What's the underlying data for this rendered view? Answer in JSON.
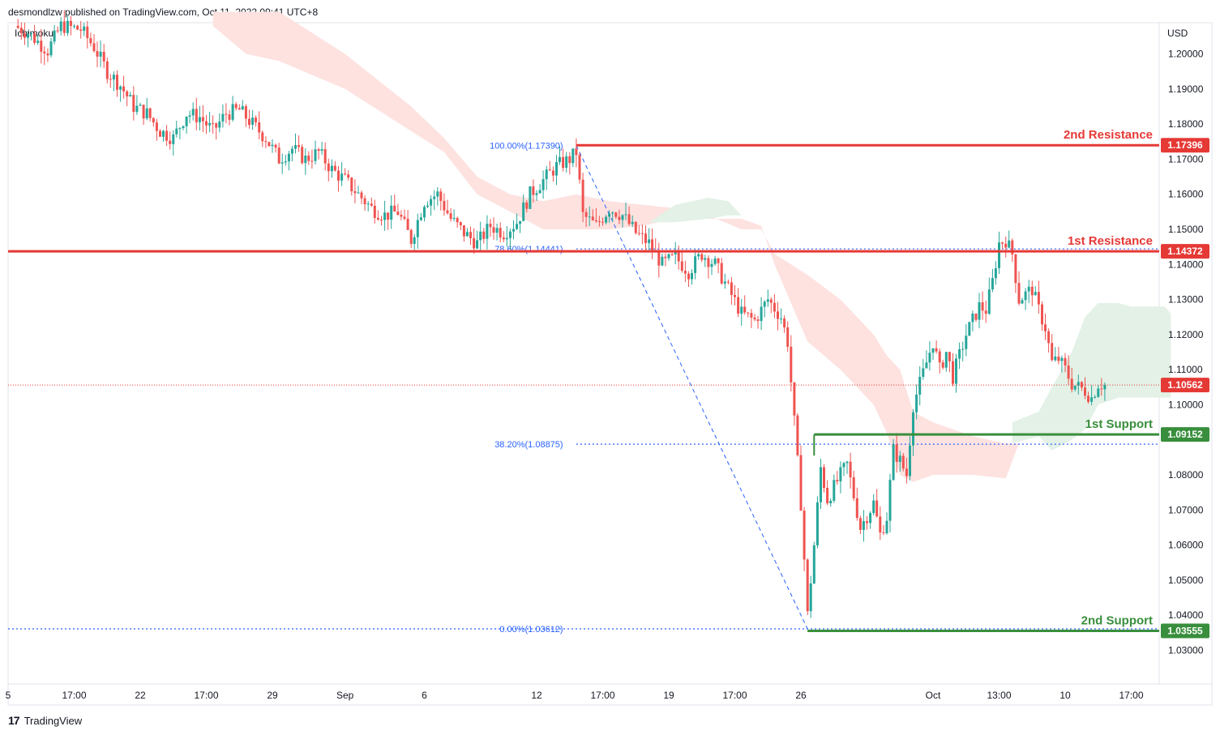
{
  "header": {
    "published": "desmondlzw published on TradingView.com, Oct 11, 2022 09:41 UTC+8",
    "indicator": "Ichimoku"
  },
  "footer": {
    "brand": "TradingView",
    "logo_glyph": "17"
  },
  "colors": {
    "bull": "#26a69a",
    "bear": "#ef5350",
    "resistance": "#e53935",
    "support": "#388e3c",
    "fib": "#2962ff",
    "cloud_bear": "#fde2e0",
    "cloud_bull": "#e3f1e6",
    "current": "#e53935"
  },
  "chart_data": {
    "type": "candlestick",
    "currency": "USD",
    "y_range": [
      1.022,
      1.212
    ],
    "y_ticks": [
      1.2,
      1.19,
      1.18,
      1.17,
      1.16,
      1.15,
      1.14,
      1.13,
      1.12,
      1.11,
      1.1,
      1.08,
      1.07,
      1.06,
      1.05,
      1.04,
      1.03
    ],
    "y_tick_labels": [
      "1.20000",
      "1.19000",
      "1.18000",
      "1.17000",
      "1.16000",
      "1.15000",
      "1.14000",
      "1.13000",
      "1.12000",
      "1.11000",
      "1.10000",
      "1.08000",
      "1.07000",
      "1.06000",
      "1.05000",
      "1.04000",
      "1.03000"
    ],
    "x_range": [
      0,
      170
    ],
    "x_ticks": [
      {
        "x": 0,
        "label": "5"
      },
      {
        "x": 10,
        "label": "17:00"
      },
      {
        "x": 20,
        "label": "22"
      },
      {
        "x": 30,
        "label": "17:00"
      },
      {
        "x": 40,
        "label": "29"
      },
      {
        "x": 51,
        "label": "Sep"
      },
      {
        "x": 63,
        "label": "6"
      },
      {
        "x": 80,
        "label": "12"
      },
      {
        "x": 90,
        "label": "17:00"
      },
      {
        "x": 100,
        "label": "19"
      },
      {
        "x": 110,
        "label": "17:00"
      },
      {
        "x": 120,
        "label": "26"
      },
      {
        "x": 140,
        "label": "Oct"
      },
      {
        "x": 150,
        "label": "13:00"
      },
      {
        "x": 160,
        "label": "10"
      },
      {
        "x": 170,
        "label": "17:00"
      }
    ],
    "price_path": [
      [
        1,
        1.208
      ],
      [
        3,
        1.206
      ],
      [
        6,
        1.201
      ],
      [
        8,
        1.208
      ],
      [
        11,
        1.207
      ],
      [
        13,
        1.202
      ],
      [
        15,
        1.195
      ],
      [
        17,
        1.191
      ],
      [
        19,
        1.185
      ],
      [
        21,
        1.183
      ],
      [
        23,
        1.178
      ],
      [
        25,
        1.176
      ],
      [
        27,
        1.183
      ],
      [
        29,
        1.182
      ],
      [
        31,
        1.178
      ],
      [
        33,
        1.183
      ],
      [
        35,
        1.184
      ],
      [
        37,
        1.18
      ],
      [
        39,
        1.176
      ],
      [
        41,
        1.17
      ],
      [
        43,
        1.173
      ],
      [
        45,
        1.17
      ],
      [
        47,
        1.172
      ],
      [
        49,
        1.167
      ],
      [
        51,
        1.164
      ],
      [
        53,
        1.16
      ],
      [
        55,
        1.156
      ],
      [
        57,
        1.154
      ],
      [
        59,
        1.155
      ],
      [
        61,
        1.147
      ],
      [
        63,
        1.158
      ],
      [
        65,
        1.16
      ],
      [
        67,
        1.153
      ],
      [
        69,
        1.149
      ],
      [
        71,
        1.146
      ],
      [
        73,
        1.151
      ],
      [
        75,
        1.149
      ],
      [
        77,
        1.152
      ],
      [
        79,
        1.16
      ],
      [
        81,
        1.164
      ],
      [
        83,
        1.168
      ],
      [
        85,
        1.17
      ],
      [
        86,
        1.172
      ],
      [
        87,
        1.154
      ],
      [
        89,
        1.151
      ],
      [
        91,
        1.156
      ],
      [
        93,
        1.154
      ],
      [
        95,
        1.149
      ],
      [
        97,
        1.146
      ],
      [
        99,
        1.14
      ],
      [
        101,
        1.142
      ],
      [
        103,
        1.138
      ],
      [
        105,
        1.143
      ],
      [
        107,
        1.14
      ],
      [
        109,
        1.133
      ],
      [
        111,
        1.126
      ],
      [
        113,
        1.124
      ],
      [
        115,
        1.13
      ],
      [
        117,
        1.125
      ],
      [
        118,
        1.118
      ],
      [
        119,
        1.095
      ],
      [
        120,
        1.072
      ],
      [
        121,
        1.04
      ],
      [
        122,
        1.06
      ],
      [
        123,
        1.082
      ],
      [
        124,
        1.073
      ],
      [
        126,
        1.08
      ],
      [
        127,
        1.083
      ],
      [
        129,
        1.065
      ],
      [
        131,
        1.072
      ],
      [
        132,
        1.063
      ],
      [
        133,
        1.068
      ],
      [
        134,
        1.087
      ],
      [
        135,
        1.084
      ],
      [
        136,
        1.08
      ],
      [
        137,
        1.1
      ],
      [
        139,
        1.112
      ],
      [
        140,
        1.118
      ],
      [
        141,
        1.11
      ],
      [
        142,
        1.115
      ],
      [
        143,
        1.108
      ],
      [
        145,
        1.12
      ],
      [
        147,
        1.128
      ],
      [
        148,
        1.127
      ],
      [
        149,
        1.135
      ],
      [
        150,
        1.146
      ],
      [
        151,
        1.147
      ],
      [
        152,
        1.143
      ],
      [
        153,
        1.13
      ],
      [
        155,
        1.133
      ],
      [
        156,
        1.127
      ],
      [
        157,
        1.122
      ],
      [
        158,
        1.112
      ],
      [
        159,
        1.113
      ],
      [
        160,
        1.11
      ],
      [
        161,
        1.106
      ],
      [
        163,
        1.104
      ],
      [
        164,
        1.102
      ],
      [
        165,
        1.106
      ],
      [
        166,
        1.1056
      ]
    ],
    "cloud_bear_top": [
      [
        31,
        1.212
      ],
      [
        41,
        1.212
      ],
      [
        51,
        1.2
      ],
      [
        61,
        1.185
      ],
      [
        66,
        1.176
      ],
      [
        71,
        1.165
      ],
      [
        76,
        1.16
      ],
      [
        81,
        1.158
      ],
      [
        86,
        1.16
      ],
      [
        91,
        1.158
      ],
      [
        96,
        1.157
      ],
      [
        101,
        1.156
      ],
      [
        106,
        1.154
      ],
      [
        111,
        1.15
      ],
      [
        114,
        1.15
      ],
      [
        116,
        1.143
      ],
      [
        121,
        1.137
      ],
      [
        126,
        1.13
      ],
      [
        131,
        1.12
      ],
      [
        133,
        1.114
      ],
      [
        135,
        1.11
      ],
      [
        137,
        1.098
      ],
      [
        140,
        1.095
      ],
      [
        146,
        1.091
      ],
      [
        151,
        1.089
      ],
      [
        153,
        1.089
      ]
    ],
    "cloud_bear_bottom": [
      [
        31,
        1.208
      ],
      [
        36,
        1.2
      ],
      [
        41,
        1.198
      ],
      [
        51,
        1.19
      ],
      [
        56,
        1.184
      ],
      [
        61,
        1.178
      ],
      [
        66,
        1.172
      ],
      [
        71,
        1.16
      ],
      [
        76,
        1.155
      ],
      [
        81,
        1.15
      ],
      [
        86,
        1.15
      ],
      [
        91,
        1.15
      ],
      [
        96,
        1.151
      ],
      [
        101,
        1.153
      ],
      [
        106,
        1.153
      ],
      [
        111,
        1.153
      ],
      [
        114,
        1.151
      ],
      [
        116,
        1.14
      ],
      [
        121,
        1.118
      ],
      [
        126,
        1.11
      ],
      [
        131,
        1.1
      ],
      [
        133,
        1.092
      ],
      [
        135,
        1.08
      ],
      [
        137,
        1.078
      ],
      [
        140,
        1.08
      ],
      [
        146,
        1.08
      ],
      [
        151,
        1.079
      ],
      [
        153,
        1.089
      ]
    ],
    "cloud_bull_top": [
      [
        97,
        1.152
      ],
      [
        101,
        1.157
      ],
      [
        106,
        1.159
      ],
      [
        109,
        1.158
      ],
      [
        111,
        1.154
      ],
      [
        152,
        1.095
      ],
      [
        156,
        1.098
      ],
      [
        158,
        1.105
      ],
      [
        161,
        1.115
      ],
      [
        163,
        1.125
      ],
      [
        165,
        1.129
      ],
      [
        168,
        1.129
      ],
      [
        170,
        1.128
      ],
      [
        175,
        1.128
      ],
      [
        176,
        1.126
      ]
    ],
    "cloud_bull_bottom": [
      [
        97,
        1.152
      ],
      [
        101,
        1.152
      ],
      [
        106,
        1.153
      ],
      [
        109,
        1.154
      ],
      [
        111,
        1.154
      ],
      [
        152,
        1.089
      ],
      [
        156,
        1.091
      ],
      [
        158,
        1.087
      ],
      [
        161,
        1.09
      ],
      [
        163,
        1.093
      ],
      [
        165,
        1.1
      ],
      [
        168,
        1.102
      ],
      [
        170,
        1.102
      ],
      [
        175,
        1.102
      ],
      [
        176,
        1.102
      ]
    ],
    "fibonacci": {
      "high": {
        "x": 86,
        "price": 1.1739
      },
      "low": {
        "x": 121,
        "price": 1.03612
      },
      "levels": [
        {
          "ratio_label": "100.00%(1.17390)",
          "price": 1.1739
        },
        {
          "ratio_label": "78.60%(1.14441)",
          "price": 1.14441
        },
        {
          "ratio_label": "38.20%(1.08875)",
          "price": 1.08875
        },
        {
          "ratio_label": "0.00%(1.03612)",
          "price": 1.03612
        }
      ]
    },
    "levels": [
      {
        "name": "2nd Resistance",
        "price": 1.17396,
        "price_label": "1.17396",
        "kind": "resistance",
        "x_start": 86
      },
      {
        "name": "1st Resistance",
        "price": 1.14372,
        "price_label": "1.14372",
        "kind": "resistance",
        "x_start": 0
      },
      {
        "name": "1st Support",
        "price": 1.09152,
        "price_label": "1.09152",
        "kind": "support",
        "x_start": 122
      },
      {
        "name": "2nd Support",
        "price": 1.03555,
        "price_label": "1.03555",
        "kind": "support",
        "x_start": 121
      }
    ],
    "current_price": {
      "price": 1.10562,
      "label": "1.10562"
    }
  }
}
